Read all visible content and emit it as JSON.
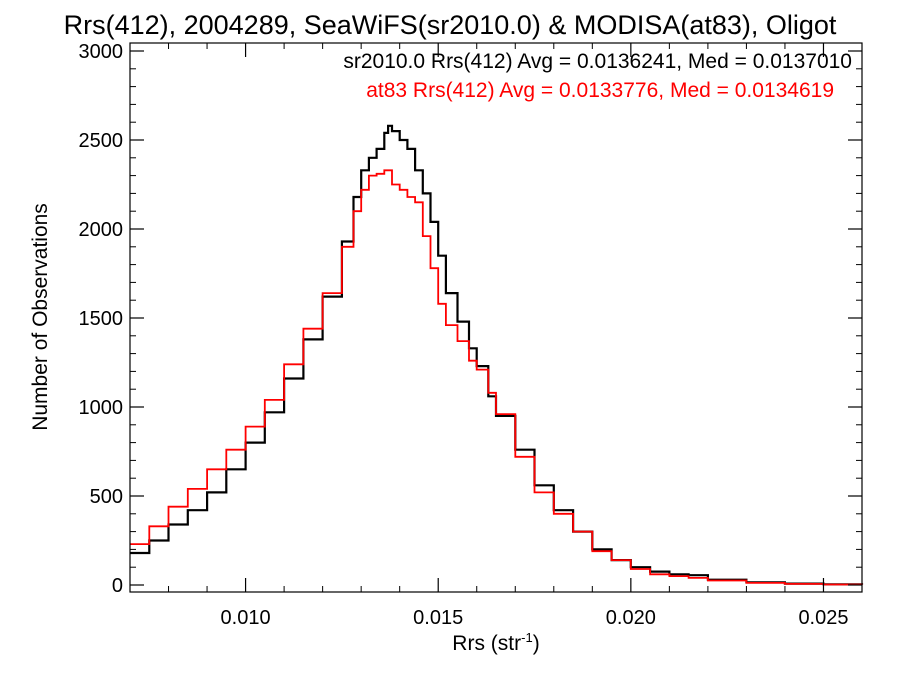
{
  "chart_data": {
    "type": "line",
    "title": "Rrs(412), 2004289, SeaWiFS(sr2010.0) & MODISA(at83), Oligot",
    "xlabel": "Rrs (str",
    "xlabel_sup": "-1",
    "xlabel_end": ")",
    "ylabel": "Number of Observations",
    "xlim": [
      0.007,
      0.026
    ],
    "ylim": [
      0,
      3000
    ],
    "x_ticks": [
      0.01,
      0.015,
      0.02,
      0.025
    ],
    "x_tick_labels": [
      "0.010",
      "0.015",
      "0.020",
      "0.025"
    ],
    "y_ticks": [
      0,
      500,
      1000,
      1500,
      2000,
      2500,
      3000
    ],
    "y_tick_labels": [
      "0",
      "500",
      "1000",
      "1500",
      "2000",
      "2500",
      "3000"
    ],
    "grid": false,
    "legend_placement": "top-right",
    "series": [
      {
        "name": "sr2010.0",
        "legend": "sr2010.0 Rrs(412) Avg = 0.0136241, Med = 0.0137010",
        "color": "#000000",
        "points": [
          [
            0.007,
            180
          ],
          [
            0.0075,
            250
          ],
          [
            0.008,
            340
          ],
          [
            0.0085,
            420
          ],
          [
            0.009,
            520
          ],
          [
            0.0095,
            650
          ],
          [
            0.01,
            800
          ],
          [
            0.0105,
            970
          ],
          [
            0.011,
            1160
          ],
          [
            0.0115,
            1380
          ],
          [
            0.012,
            1620
          ],
          [
            0.0125,
            1930
          ],
          [
            0.0128,
            2180
          ],
          [
            0.013,
            2330
          ],
          [
            0.0132,
            2400
          ],
          [
            0.0134,
            2450
          ],
          [
            0.0136,
            2540
          ],
          [
            0.0137,
            2580
          ],
          [
            0.0138,
            2550
          ],
          [
            0.014,
            2500
          ],
          [
            0.0142,
            2450
          ],
          [
            0.0144,
            2330
          ],
          [
            0.0146,
            2200
          ],
          [
            0.0148,
            2040
          ],
          [
            0.015,
            1850
          ],
          [
            0.0152,
            1640
          ],
          [
            0.0155,
            1480
          ],
          [
            0.0158,
            1330
          ],
          [
            0.016,
            1230
          ],
          [
            0.0163,
            1060
          ],
          [
            0.0165,
            950
          ],
          [
            0.017,
            760
          ],
          [
            0.0175,
            560
          ],
          [
            0.018,
            420
          ],
          [
            0.0185,
            300
          ],
          [
            0.019,
            200
          ],
          [
            0.0195,
            140
          ],
          [
            0.02,
            100
          ],
          [
            0.0205,
            75
          ],
          [
            0.021,
            60
          ],
          [
            0.0215,
            55
          ],
          [
            0.022,
            30
          ],
          [
            0.023,
            15
          ],
          [
            0.024,
            8
          ],
          [
            0.025,
            4
          ],
          [
            0.026,
            2
          ]
        ]
      },
      {
        "name": "at83",
        "legend": "at83 Rrs(412) Avg = 0.0133776, Med = 0.0134619",
        "color": "#ff0000",
        "points": [
          [
            0.007,
            230
          ],
          [
            0.0075,
            330
          ],
          [
            0.008,
            440
          ],
          [
            0.0085,
            540
          ],
          [
            0.009,
            650
          ],
          [
            0.0095,
            760
          ],
          [
            0.01,
            890
          ],
          [
            0.0105,
            1040
          ],
          [
            0.011,
            1240
          ],
          [
            0.0115,
            1440
          ],
          [
            0.012,
            1640
          ],
          [
            0.0125,
            1900
          ],
          [
            0.0128,
            2100
          ],
          [
            0.013,
            2220
          ],
          [
            0.0132,
            2300
          ],
          [
            0.0134,
            2310
          ],
          [
            0.0136,
            2330
          ],
          [
            0.0138,
            2250
          ],
          [
            0.014,
            2220
          ],
          [
            0.0142,
            2180
          ],
          [
            0.0144,
            2150
          ],
          [
            0.0146,
            1960
          ],
          [
            0.0148,
            1780
          ],
          [
            0.015,
            1580
          ],
          [
            0.0152,
            1460
          ],
          [
            0.0155,
            1370
          ],
          [
            0.0158,
            1260
          ],
          [
            0.016,
            1210
          ],
          [
            0.0163,
            1080
          ],
          [
            0.0165,
            960
          ],
          [
            0.017,
            720
          ],
          [
            0.0175,
            520
          ],
          [
            0.018,
            400
          ],
          [
            0.0185,
            300
          ],
          [
            0.019,
            190
          ],
          [
            0.0195,
            140
          ],
          [
            0.02,
            90
          ],
          [
            0.0205,
            60
          ],
          [
            0.021,
            50
          ],
          [
            0.0215,
            40
          ],
          [
            0.022,
            25
          ],
          [
            0.023,
            12
          ],
          [
            0.024,
            6
          ],
          [
            0.025,
            3
          ],
          [
            0.026,
            1
          ]
        ]
      }
    ]
  }
}
